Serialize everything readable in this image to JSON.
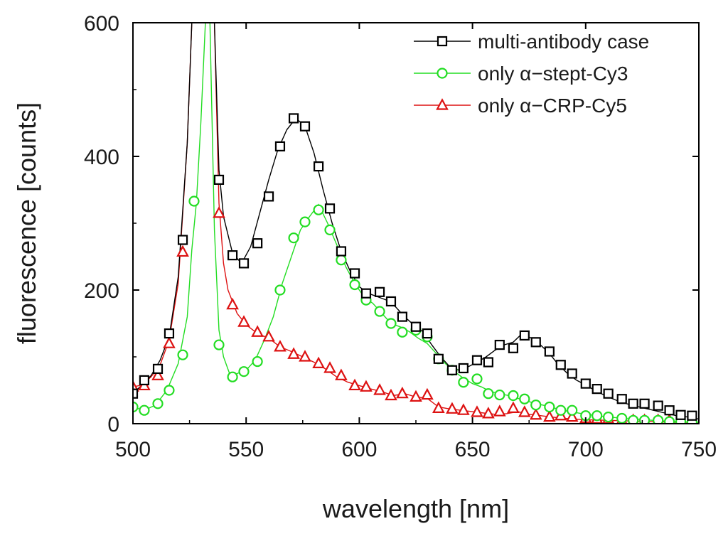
{
  "chart_data": {
    "type": "line",
    "title": "",
    "xlabel": "wavelength [nm]",
    "ylabel": "fluorescence [counts]",
    "xlim": [
      500,
      750
    ],
    "ylim": [
      0,
      600
    ],
    "xticks": [
      500,
      550,
      600,
      650,
      700,
      750
    ],
    "yticks": [
      0,
      200,
      400,
      600
    ],
    "grid": false,
    "legend": "top-right",
    "series": [
      {
        "name": "multi-antibody case",
        "color": "#000000",
        "marker": "square",
        "x": [
          500,
          504,
          508,
          512,
          516,
          520,
          524,
          526,
          530,
          534,
          536,
          538,
          540,
          544,
          548,
          552,
          556,
          560,
          564,
          568,
          572,
          576,
          580,
          584,
          588,
          592,
          596,
          600,
          604,
          608,
          612,
          616,
          620,
          624,
          628,
          632,
          636,
          640,
          644,
          648,
          652,
          656,
          660,
          664,
          668,
          672,
          676,
          680,
          684,
          688,
          692,
          696,
          700,
          705,
          710,
          715,
          720,
          725,
          730,
          735,
          740,
          745,
          750
        ],
        "y": [
          45,
          58,
          72,
          95,
          130,
          220,
          420,
          600,
          600,
          600,
          600,
          380,
          310,
          255,
          240,
          265,
          315,
          365,
          410,
          440,
          457,
          445,
          405,
          350,
          300,
          258,
          228,
          205,
          195,
          190,
          185,
          175,
          160,
          148,
          138,
          118,
          100,
          85,
          80,
          85,
          92,
          100,
          110,
          118,
          122,
          135,
          128,
          118,
          105,
          88,
          75,
          65,
          58,
          48,
          40,
          33,
          28,
          24,
          20,
          16,
          12,
          10,
          7
        ],
        "marker_x": [
          500,
          505,
          511,
          516,
          522,
          538,
          544,
          549,
          555,
          560,
          565,
          571,
          576,
          582,
          587,
          592,
          598,
          603,
          609,
          614,
          619,
          625,
          630,
          635,
          641,
          646,
          652,
          657,
          662,
          668,
          673,
          678,
          684,
          689,
          694,
          700,
          705,
          710,
          716,
          721,
          726,
          732,
          737,
          742,
          747
        ],
        "marker_y": [
          45,
          65,
          82,
          135,
          275,
          365,
          252,
          240,
          270,
          340,
          415,
          457,
          445,
          385,
          322,
          258,
          225,
          195,
          197,
          183,
          160,
          145,
          135,
          97,
          80,
          83,
          95,
          92,
          118,
          113,
          132,
          122,
          108,
          88,
          75,
          60,
          52,
          45,
          37,
          30,
          30,
          27,
          20,
          13,
          12
        ]
      },
      {
        "name": "only α−stept-Cy3",
        "color": "#22dd22",
        "marker": "circle",
        "x": [
          500,
          505,
          510,
          515,
          520,
          524,
          526,
          528,
          530,
          532,
          534,
          536,
          538,
          540,
          543,
          546,
          550,
          554,
          558,
          562,
          566,
          570,
          574,
          578,
          582,
          586,
          590,
          594,
          598,
          602,
          606,
          610,
          614,
          618,
          622,
          626,
          630,
          634,
          638,
          642,
          646,
          650,
          654,
          658,
          662,
          666,
          670,
          676,
          682,
          690,
          700,
          710,
          720,
          730,
          740,
          750
        ],
        "y": [
          25,
          20,
          28,
          50,
          90,
          160,
          260,
          330,
          450,
          600,
          600,
          290,
          140,
          100,
          72,
          75,
          80,
          95,
          125,
          160,
          210,
          250,
          290,
          310,
          328,
          300,
          268,
          235,
          210,
          190,
          180,
          165,
          150,
          145,
          138,
          128,
          120,
          105,
          90,
          78,
          68,
          60,
          55,
          48,
          45,
          42,
          38,
          32,
          27,
          20,
          14,
          10,
          7,
          5,
          3,
          2
        ],
        "marker_x": [
          500,
          505,
          511,
          516,
          522,
          527,
          538,
          544,
          549,
          555,
          565,
          571,
          576,
          582,
          587,
          592,
          598,
          603,
          609,
          614,
          619,
          625,
          630,
          635,
          641,
          646,
          652,
          657,
          662,
          668,
          673,
          678,
          684,
          689,
          694,
          700,
          705,
          710,
          716,
          721,
          726,
          732,
          737,
          742,
          747
        ],
        "marker_y": [
          25,
          20,
          30,
          50,
          103,
          333,
          118,
          70,
          78,
          93,
          200,
          278,
          302,
          320,
          290,
          245,
          208,
          185,
          168,
          150,
          137,
          140,
          130,
          97,
          80,
          62,
          67,
          45,
          43,
          42,
          37,
          28,
          25,
          20,
          20,
          12,
          12,
          10,
          8,
          5,
          5,
          5,
          3,
          3,
          2
        ]
      },
      {
        "name": "only α−CRP-Cy5",
        "color": "#dd1111",
        "marker": "triangle",
        "x": [
          500,
          504,
          508,
          512,
          516,
          520,
          524,
          526,
          530,
          534,
          536,
          538,
          540,
          542,
          546,
          550,
          555,
          560,
          565,
          570,
          575,
          580,
          585,
          590,
          595,
          600,
          605,
          610,
          615,
          620,
          625,
          630,
          635,
          640,
          645,
          650,
          655,
          660,
          665,
          670,
          675,
          680,
          690,
          700,
          710,
          720,
          730,
          740,
          750
        ],
        "y": [
          55,
          58,
          70,
          88,
          125,
          210,
          420,
          600,
          600,
          600,
          600,
          330,
          240,
          200,
          165,
          148,
          135,
          128,
          115,
          108,
          100,
          92,
          82,
          70,
          62,
          57,
          52,
          48,
          42,
          45,
          40,
          38,
          25,
          22,
          20,
          18,
          16,
          14,
          15,
          18,
          14,
          12,
          8,
          6,
          5,
          4,
          3,
          2,
          2
        ],
        "marker_x": [
          500,
          505,
          511,
          516,
          522,
          538,
          544,
          549,
          555,
          560,
          565,
          571,
          576,
          582,
          587,
          592,
          598,
          603,
          609,
          614,
          619,
          625,
          630,
          635,
          641,
          646,
          652,
          657,
          662,
          668,
          673,
          678,
          684,
          689,
          694,
          700,
          705,
          710,
          716,
          721,
          726,
          732,
          737,
          742,
          747
        ],
        "marker_y": [
          55,
          57,
          72,
          120,
          257,
          315,
          178,
          152,
          137,
          130,
          115,
          104,
          100,
          90,
          83,
          72,
          57,
          55,
          50,
          42,
          45,
          40,
          43,
          23,
          22,
          20,
          17,
          15,
          18,
          23,
          17,
          13,
          10,
          12,
          10,
          8,
          7,
          7,
          5,
          5,
          5,
          5,
          5,
          3,
          2
        ]
      }
    ]
  }
}
